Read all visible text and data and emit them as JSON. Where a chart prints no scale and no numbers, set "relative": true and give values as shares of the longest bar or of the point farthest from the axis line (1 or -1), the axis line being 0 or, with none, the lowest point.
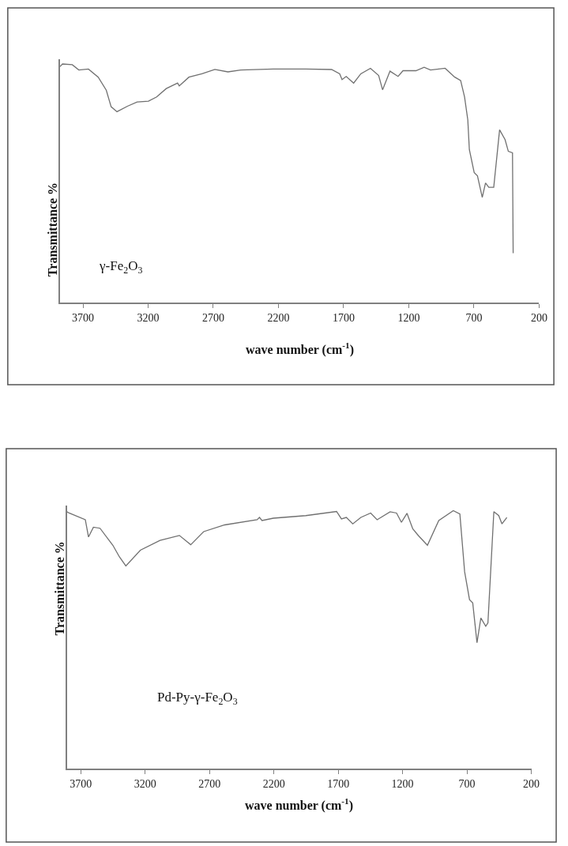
{
  "chart_data": [
    {
      "type": "line",
      "relative": true,
      "xlabel": "wave number (cm$^{-1}$)",
      "ylabel": "Transmittance %",
      "annotations": [
        "γ-Fe$_{2}$O$_{3}$"
      ],
      "xlim": [
        3877,
        200
      ],
      "xticks": [
        3700,
        3200,
        2700,
        2200,
        1700,
        1200,
        700,
        200
      ],
      "tick_labels": "x",
      "series": [
        {
          "color": "#707070",
          "x": [
            3877,
            3857,
            3782,
            3732,
            3658,
            3583,
            3521,
            3484,
            3439,
            3359,
            3285,
            3198,
            3135,
            3061,
            2974,
            2961,
            2887,
            2787,
            2688,
            2588,
            2489,
            2240,
            1991,
            1792,
            1730,
            1712,
            1680,
            1623,
            1568,
            1494,
            1431,
            1401,
            1344,
            1282,
            1244,
            1145,
            1082,
            1033,
            921,
            847,
            802,
            772,
            747,
            735,
            698,
            673,
            636,
            611,
            586,
            548,
            503,
            461,
            436,
            404,
            399
          ],
          "values": [
            0.989,
            1.0,
            0.997,
            0.975,
            0.979,
            0.945,
            0.89,
            0.821,
            0.8,
            0.823,
            0.841,
            0.844,
            0.862,
            0.897,
            0.92,
            0.908,
            0.945,
            0.959,
            0.977,
            0.967,
            0.975,
            0.979,
            0.979,
            0.977,
            0.959,
            0.935,
            0.948,
            0.92,
            0.959,
            0.982,
            0.952,
            0.892,
            0.97,
            0.948,
            0.972,
            0.972,
            0.986,
            0.975,
            0.982,
            0.945,
            0.931,
            0.862,
            0.766,
            0.641,
            0.545,
            0.531,
            0.441,
            0.501,
            0.483,
            0.483,
            0.724,
            0.683,
            0.634,
            0.628,
            0.207
          ]
        }
      ]
    },
    {
      "type": "line",
      "relative": true,
      "xlabel": "wave number (cm$^{-1}$)",
      "ylabel": "Transmittance %",
      "annotations": [
        "Pd-Py-γ-Fe$_{2}$O$_{3}$"
      ],
      "xlim": [
        3808,
        200
      ],
      "xticks": [
        3700,
        3200,
        2700,
        2200,
        1700,
        1200,
        700,
        200
      ],
      "tick_labels": "x",
      "series": [
        {
          "color": "#707070",
          "x": [
            3808,
            3791,
            3665,
            3640,
            3602,
            3551,
            3451,
            3400,
            3350,
            3237,
            3085,
            2934,
            2846,
            2745,
            2582,
            2330,
            2312,
            2292,
            2204,
            1952,
            1713,
            1675,
            1637,
            1587,
            1524,
            1448,
            1398,
            1297,
            1247,
            1209,
            1166,
            1121,
            1075,
            1007,
            919,
            806,
            755,
            718,
            680,
            655,
            622,
            592,
            554,
            537,
            491,
            453,
            428,
            390
          ],
          "values": [
            0.996,
            0.991,
            0.965,
            0.898,
            0.936,
            0.932,
            0.866,
            0.821,
            0.786,
            0.847,
            0.885,
            0.904,
            0.868,
            0.919,
            0.945,
            0.965,
            0.974,
            0.962,
            0.971,
            0.981,
            0.997,
            0.968,
            0.974,
            0.949,
            0.974,
            0.991,
            0.965,
            0.996,
            0.991,
            0.955,
            0.99,
            0.93,
            0.902,
            0.866,
            0.962,
            1.0,
            0.987,
            0.763,
            0.655,
            0.642,
            0.488,
            0.584,
            0.552,
            0.565,
            0.996,
            0.981,
            0.949,
            0.974
          ]
        }
      ]
    }
  ]
}
